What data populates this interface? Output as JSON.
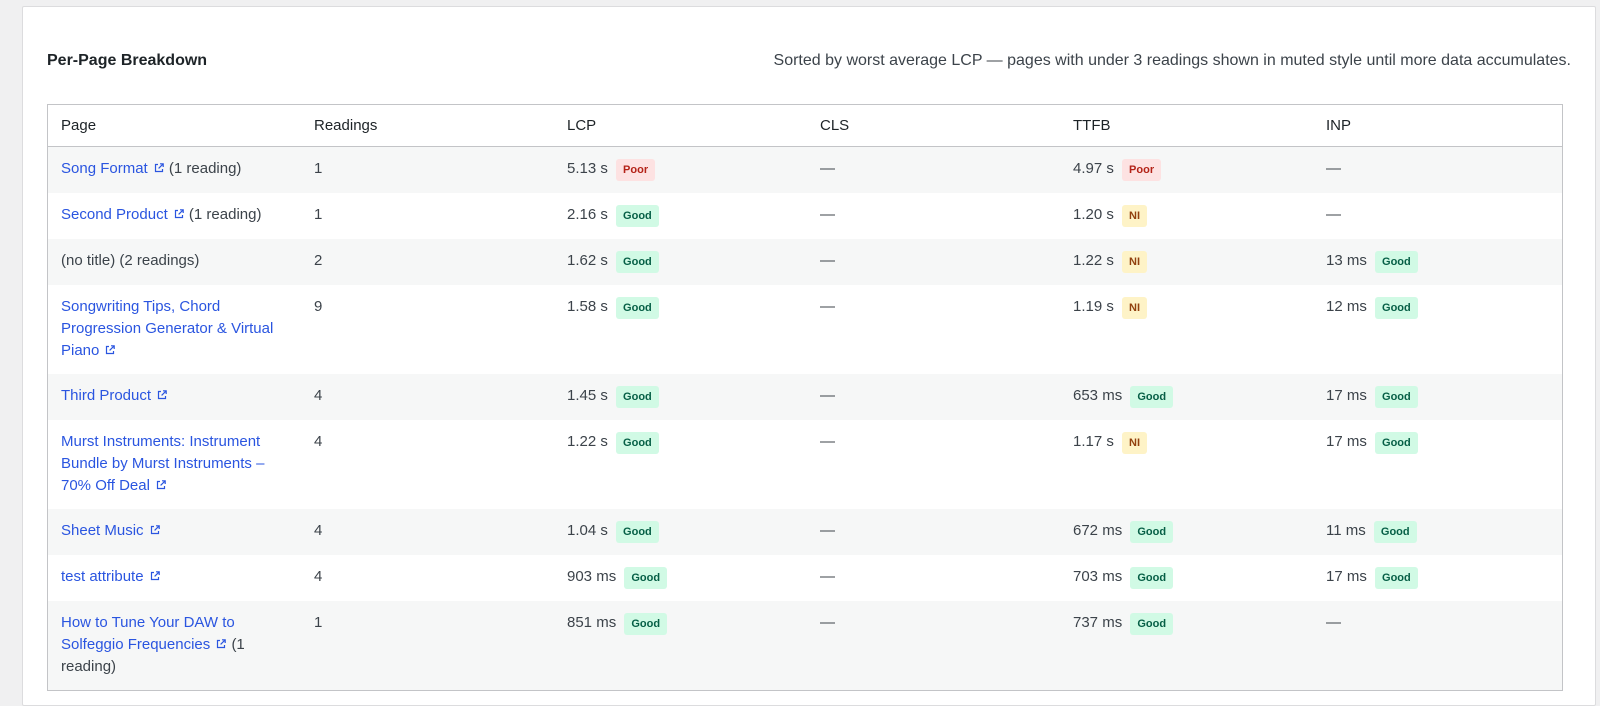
{
  "panel": {
    "title": "Per-Page Breakdown",
    "note": "Sorted by worst average LCP — pages with under 3 readings shown in muted style until more data accumulates."
  },
  "table": {
    "headers": {
      "page": "Page",
      "readings": "Readings",
      "lcp": "LCP",
      "cls": "CLS",
      "ttfb": "TTFB",
      "inp": "INP"
    },
    "empty_value": "—",
    "rows": [
      {
        "page": "Song Format",
        "linked": true,
        "suffix": "(1 reading)",
        "readings": "1",
        "lcp": {
          "value": "5.13 s",
          "rating": "Poor",
          "tone": "poor"
        },
        "cls": null,
        "ttfb": {
          "value": "4.97 s",
          "rating": "Poor",
          "tone": "poor"
        },
        "inp": null
      },
      {
        "page": "Second Product",
        "linked": true,
        "suffix": "(1 reading)",
        "readings": "1",
        "lcp": {
          "value": "2.16 s",
          "rating": "Good",
          "tone": "good"
        },
        "cls": null,
        "ttfb": {
          "value": "1.20 s",
          "rating": "NI",
          "tone": "ni"
        },
        "inp": null
      },
      {
        "page": "(no title)",
        "linked": false,
        "suffix": "(2 readings)",
        "readings": "2",
        "lcp": {
          "value": "1.62 s",
          "rating": "Good",
          "tone": "good"
        },
        "cls": null,
        "ttfb": {
          "value": "1.22 s",
          "rating": "NI",
          "tone": "ni"
        },
        "inp": {
          "value": "13 ms",
          "rating": "Good",
          "tone": "good"
        }
      },
      {
        "page": "Songwriting Tips, Chord Progression Generator & Virtual Piano",
        "linked": true,
        "suffix": "",
        "readings": "9",
        "lcp": {
          "value": "1.58 s",
          "rating": "Good",
          "tone": "good"
        },
        "cls": null,
        "ttfb": {
          "value": "1.19 s",
          "rating": "NI",
          "tone": "ni"
        },
        "inp": {
          "value": "12 ms",
          "rating": "Good",
          "tone": "good"
        }
      },
      {
        "page": "Third Product",
        "linked": true,
        "suffix": "",
        "readings": "4",
        "lcp": {
          "value": "1.45 s",
          "rating": "Good",
          "tone": "good"
        },
        "cls": null,
        "ttfb": {
          "value": "653 ms",
          "rating": "Good",
          "tone": "good"
        },
        "inp": {
          "value": "17 ms",
          "rating": "Good",
          "tone": "good"
        }
      },
      {
        "page": "Murst Instruments: Instrument Bundle by Murst Instruments – 70% Off Deal",
        "linked": true,
        "suffix": "",
        "readings": "4",
        "lcp": {
          "value": "1.22 s",
          "rating": "Good",
          "tone": "good"
        },
        "cls": null,
        "ttfb": {
          "value": "1.17 s",
          "rating": "NI",
          "tone": "ni"
        },
        "inp": {
          "value": "17 ms",
          "rating": "Good",
          "tone": "good"
        }
      },
      {
        "page": "Sheet Music",
        "linked": true,
        "suffix": "",
        "readings": "4",
        "lcp": {
          "value": "1.04 s",
          "rating": "Good",
          "tone": "good"
        },
        "cls": null,
        "ttfb": {
          "value": "672 ms",
          "rating": "Good",
          "tone": "good"
        },
        "inp": {
          "value": "11 ms",
          "rating": "Good",
          "tone": "good"
        }
      },
      {
        "page": "test attribute",
        "linked": true,
        "suffix": "",
        "readings": "4",
        "lcp": {
          "value": "903 ms",
          "rating": "Good",
          "tone": "good"
        },
        "cls": null,
        "ttfb": {
          "value": "703 ms",
          "rating": "Good",
          "tone": "good"
        },
        "inp": {
          "value": "17 ms",
          "rating": "Good",
          "tone": "good"
        }
      },
      {
        "page": "How to Tune Your DAW to Solfeggio Frequencies",
        "linked": true,
        "suffix": "(1 reading)",
        "readings": "1",
        "lcp": {
          "value": "851 ms",
          "rating": "Good",
          "tone": "good"
        },
        "cls": null,
        "ttfb": {
          "value": "737 ms",
          "rating": "Good",
          "tone": "good"
        },
        "inp": null
      }
    ]
  },
  "icons": {
    "external_link": "external-link-icon"
  },
  "colors": {
    "link": "#2a55e0",
    "good_bg": "#d1fae5",
    "good_text": "#065f46",
    "poor_bg": "#fde2e2",
    "poor_text": "#b42318",
    "ni_bg": "#fef3c7",
    "ni_text": "#92400e"
  }
}
